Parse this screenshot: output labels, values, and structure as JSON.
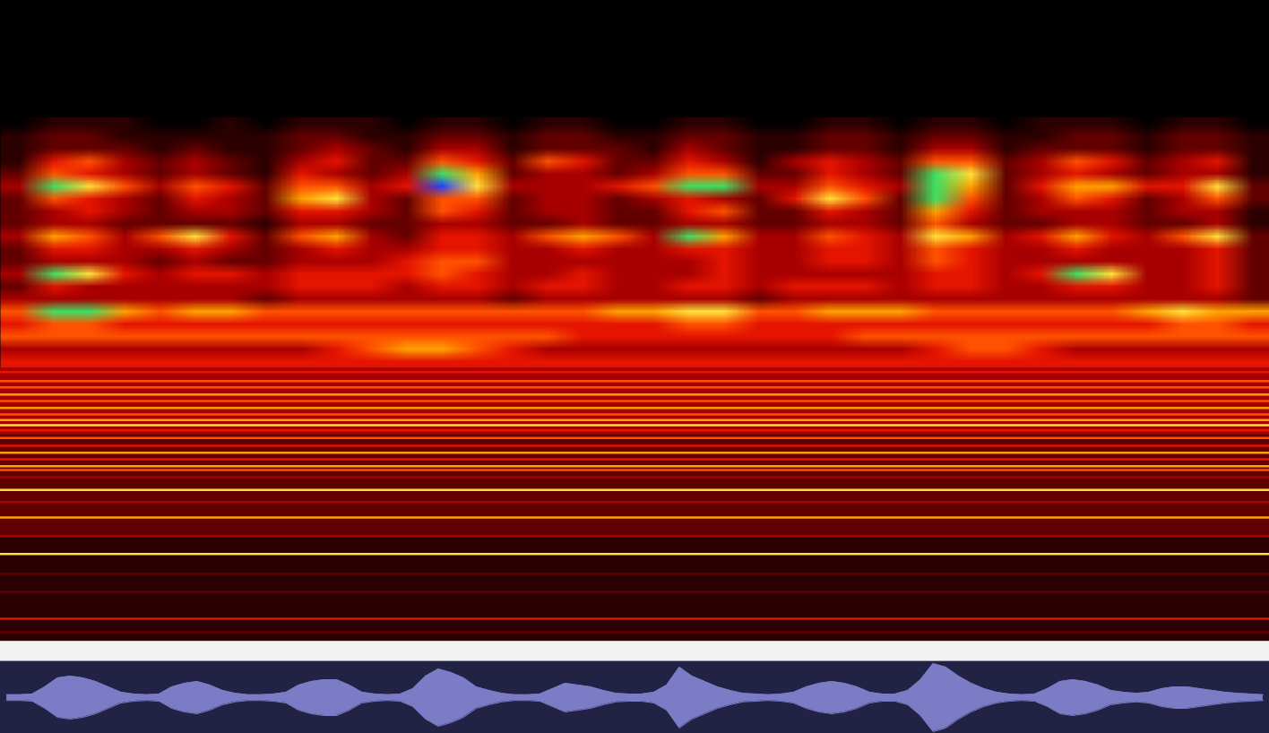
{
  "chart_data": [
    {
      "type": "spectrogram",
      "xlim": [
        0,
        100
      ],
      "ylim": [
        0,
        100
      ],
      "tick_labels": false,
      "intensity_range": [
        0,
        9
      ],
      "cells": {
        "x_range": [
          0,
          100
        ],
        "y_range": [
          81.8,
          42.7
        ],
        "values": [
          [
            0,
            1,
            1,
            1,
            0,
            0,
            1,
            0,
            1,
            1,
            1,
            0,
            1,
            1,
            0,
            1,
            1,
            0,
            0,
            1,
            1,
            0,
            0,
            1,
            1,
            0,
            1,
            1,
            0,
            1,
            1,
            1,
            0,
            1,
            1,
            0
          ],
          [
            1,
            2,
            2,
            1,
            1,
            1,
            1,
            1,
            2,
            2,
            1,
            1,
            2,
            2,
            1,
            2,
            2,
            1,
            1,
            2,
            2,
            1,
            1,
            2,
            2,
            1,
            2,
            2,
            1,
            1,
            2,
            2,
            1,
            2,
            2,
            1
          ],
          [
            1,
            2,
            2,
            2,
            1,
            2,
            1,
            1,
            2,
            3,
            2,
            1,
            3,
            3,
            1,
            2,
            2,
            2,
            1,
            3,
            2,
            1,
            1,
            2,
            2,
            1,
            3,
            3,
            1,
            2,
            2,
            2,
            1,
            2,
            2,
            1
          ],
          [
            1,
            4,
            5,
            3,
            2,
            3,
            2,
            1,
            3,
            4,
            2,
            2,
            5,
            4,
            2,
            5,
            4,
            2,
            2,
            4,
            3,
            1,
            3,
            4,
            3,
            2,
            5,
            5,
            2,
            3,
            5,
            4,
            2,
            3,
            4,
            1
          ],
          [
            2,
            5,
            4,
            3,
            2,
            3,
            2,
            1,
            4,
            3,
            2,
            3,
            8,
            6,
            2,
            3,
            3,
            2,
            3,
            5,
            5,
            2,
            2,
            4,
            3,
            2,
            8,
            7,
            2,
            3,
            4,
            3,
            2,
            3,
            3,
            1
          ],
          [
            3,
            8,
            7,
            5,
            3,
            5,
            4,
            2,
            5,
            5,
            3,
            4,
            9,
            7,
            3,
            3,
            3,
            4,
            5,
            8,
            8,
            3,
            3,
            5,
            4,
            3,
            8,
            6,
            2,
            4,
            6,
            6,
            4,
            4,
            7,
            2
          ],
          [
            2,
            5,
            4,
            3,
            2,
            4,
            3,
            2,
            6,
            7,
            3,
            2,
            5,
            5,
            2,
            3,
            3,
            2,
            3,
            4,
            3,
            2,
            4,
            7,
            5,
            2,
            8,
            5,
            2,
            3,
            5,
            4,
            2,
            3,
            5,
            2
          ],
          [
            2,
            3,
            4,
            3,
            2,
            3,
            3,
            2,
            4,
            4,
            3,
            2,
            5,
            4,
            2,
            3,
            3,
            2,
            2,
            4,
            5,
            2,
            2,
            4,
            3,
            2,
            6,
            4,
            2,
            3,
            3,
            3,
            2,
            3,
            3,
            1
          ],
          [
            2,
            3,
            3,
            2,
            2,
            2,
            2,
            1,
            3,
            3,
            2,
            2,
            3,
            3,
            2,
            2,
            3,
            2,
            2,
            3,
            3,
            2,
            2,
            3,
            3,
            2,
            5,
            3,
            2,
            2,
            3,
            3,
            2,
            2,
            3,
            1
          ],
          [
            3,
            6,
            5,
            3,
            5,
            7,
            4,
            2,
            5,
            6,
            3,
            2,
            4,
            4,
            3,
            5,
            6,
            5,
            3,
            8,
            6,
            3,
            3,
            5,
            4,
            3,
            7,
            6,
            3,
            4,
            6,
            4,
            3,
            5,
            7,
            2
          ],
          [
            2,
            4,
            4,
            3,
            3,
            4,
            3,
            2,
            3,
            4,
            3,
            3,
            4,
            4,
            3,
            3,
            4,
            3,
            3,
            4,
            4,
            3,
            3,
            4,
            4,
            3,
            5,
            4,
            3,
            3,
            4,
            3,
            3,
            3,
            4,
            2
          ],
          [
            2,
            3,
            3,
            3,
            2,
            3,
            2,
            2,
            3,
            3,
            3,
            4,
            5,
            5,
            3,
            3,
            3,
            3,
            3,
            3,
            4,
            3,
            3,
            4,
            4,
            3,
            5,
            4,
            3,
            3,
            3,
            3,
            3,
            3,
            4,
            2
          ],
          [
            3,
            8,
            7,
            4,
            3,
            4,
            4,
            3,
            4,
            4,
            4,
            4,
            5,
            4,
            3,
            3,
            4,
            3,
            3,
            3,
            4,
            3,
            3,
            3,
            3,
            3,
            4,
            4,
            3,
            4,
            8,
            7,
            3,
            3,
            4,
            2
          ],
          [
            2,
            4,
            3,
            3,
            3,
            3,
            3,
            3,
            4,
            4,
            4,
            3,
            4,
            4,
            3,
            4,
            4,
            3,
            3,
            4,
            4,
            3,
            4,
            4,
            4,
            3,
            4,
            4,
            3,
            3,
            4,
            4,
            3,
            3,
            4,
            2
          ],
          [
            3,
            3,
            3,
            3,
            3,
            3,
            3,
            2,
            3,
            3,
            3,
            3,
            3,
            3,
            2,
            3,
            3,
            3,
            3,
            3,
            3,
            2,
            3,
            3,
            3,
            3,
            3,
            3,
            3,
            3,
            3,
            3,
            3,
            3,
            3,
            2
          ],
          [
            5,
            8,
            8,
            6,
            5,
            6,
            6,
            5,
            5,
            5,
            5,
            5,
            5,
            5,
            5,
            5,
            5,
            6,
            6,
            7,
            7,
            5,
            5,
            6,
            6,
            6,
            5,
            5,
            5,
            5,
            5,
            5,
            6,
            7,
            6,
            6
          ],
          [
            4,
            5,
            5,
            4,
            4,
            4,
            4,
            4,
            4,
            4,
            4,
            4,
            4,
            4,
            4,
            4,
            4,
            4,
            4,
            5,
            5,
            4,
            4,
            4,
            4,
            4,
            4,
            4,
            4,
            4,
            4,
            4,
            4,
            5,
            5,
            4
          ],
          [
            5,
            5,
            5,
            5,
            5,
            5,
            5,
            5,
            5,
            5,
            5,
            5,
            5,
            5,
            5,
            5,
            4,
            4,
            4,
            4,
            4,
            4,
            4,
            4,
            5,
            5,
            5,
            5,
            5,
            5,
            5,
            5,
            5,
            5,
            5,
            5
          ],
          [
            3,
            3,
            3,
            3,
            3,
            3,
            3,
            3,
            3,
            4,
            5,
            6,
            6,
            5,
            4,
            3,
            3,
            3,
            3,
            3,
            3,
            3,
            3,
            3,
            3,
            3,
            4,
            5,
            5,
            4,
            3,
            3,
            3,
            3,
            3,
            3
          ],
          [
            4,
            4,
            4,
            4,
            4,
            4,
            4,
            4,
            4,
            4,
            4,
            4,
            4,
            4,
            4,
            4,
            4,
            4,
            4,
            4,
            4,
            4,
            4,
            4,
            4,
            4,
            4,
            4,
            4,
            4,
            4,
            4,
            4,
            4,
            4,
            4
          ]
        ]
      },
      "background_bands": [
        {
          "y1": 0,
          "y2": 16.1,
          "intensity": 1
        },
        {
          "y1": 16.1,
          "y2": 32.2,
          "intensity": 2
        },
        {
          "y1": 32.2,
          "y2": 42.7,
          "intensity": 3
        }
      ],
      "tones": [
        {
          "frequency": 42.0,
          "intensity": 4
        },
        {
          "frequency": 40.6,
          "intensity": 5
        },
        {
          "frequency": 39.6,
          "intensity": 5
        },
        {
          "frequency": 38.5,
          "intensity": 6
        },
        {
          "frequency": 37.5,
          "intensity": 5
        },
        {
          "frequency": 36.4,
          "intensity": 6
        },
        {
          "frequency": 35.4,
          "intensity": 5
        },
        {
          "frequency": 34.5,
          "intensity": 6
        },
        {
          "frequency": 33.7,
          "intensity": 7
        },
        {
          "frequency": 32.9,
          "intensity": 4
        },
        {
          "frequency": 31.7,
          "intensity": 5
        },
        {
          "frequency": 30.5,
          "intensity": 4
        },
        {
          "frequency": 29.4,
          "intensity": 6
        },
        {
          "frequency": 28.4,
          "intensity": 4
        },
        {
          "frequency": 27.3,
          "intensity": 6
        },
        {
          "frequency": 26.7,
          "intensity": 5
        },
        {
          "frequency": 25.6,
          "intensity": 3
        },
        {
          "frequency": 23.6,
          "intensity": 7
        },
        {
          "frequency": 21.7,
          "intensity": 3
        },
        {
          "frequency": 19.3,
          "intensity": 6
        },
        {
          "frequency": 17.5,
          "intensity": 2
        },
        {
          "frequency": 16.4,
          "intensity": 3
        },
        {
          "frequency": 13.6,
          "intensity": 7
        },
        {
          "frequency": 10.5,
          "intensity": 2
        },
        {
          "frequency": 7.7,
          "intensity": 2
        },
        {
          "frequency": 3.5,
          "intensity": 4
        },
        {
          "frequency": 1.4,
          "intensity": 2
        }
      ]
    },
    {
      "type": "waveform",
      "xlim": [
        0,
        100
      ],
      "ylim": [
        -1,
        1
      ],
      "tick_labels": false,
      "color": "#7b7bc6",
      "x": [
        0.5,
        1.5,
        2.5,
        3.5,
        4.5,
        5.5,
        6.5,
        7.5,
        8.5,
        9.5,
        10.5,
        11.5,
        12.5,
        13.5,
        14.5,
        15.5,
        16.5,
        17.5,
        18.5,
        19.5,
        20.5,
        21.5,
        22.5,
        23.5,
        24.5,
        25.5,
        26.5,
        27.5,
        28.5,
        29.5,
        30.5,
        31.5,
        32.5,
        33.5,
        34.5,
        35.5,
        36.5,
        37.5,
        38.5,
        39.5,
        40.5,
        41.5,
        42.5,
        43.5,
        44.5,
        45.5,
        46.5,
        47.5,
        48.5,
        49.5,
        50.5,
        51.5,
        52.5,
        53.5,
        54.5,
        55.5,
        56.5,
        57.5,
        58.5,
        59.5,
        60.5,
        61.5,
        62.5,
        63.5,
        64.5,
        65.5,
        66.5,
        67.5,
        68.5,
        69.5,
        70.5,
        71.5,
        72.5,
        73.5,
        74.5,
        75.5,
        76.5,
        77.5,
        78.5,
        79.5,
        80.5,
        81.5,
        82.5,
        83.5,
        84.5,
        85.5,
        86.5,
        87.5,
        88.5,
        89.5,
        90.5,
        91.5,
        92.5,
        93.5,
        94.5,
        95.5,
        96.5,
        97.5,
        98.5,
        99.5
      ],
      "values": [
        0.08,
        0.08,
        0.1,
        0.3,
        0.55,
        0.6,
        0.55,
        0.45,
        0.3,
        0.15,
        0.1,
        0.08,
        0.1,
        0.3,
        0.4,
        0.45,
        0.35,
        0.2,
        0.12,
        0.08,
        0.08,
        0.1,
        0.15,
        0.35,
        0.45,
        0.5,
        0.5,
        0.35,
        0.15,
        0.1,
        0.08,
        0.1,
        0.25,
        0.6,
        0.8,
        0.7,
        0.55,
        0.3,
        0.2,
        0.12,
        0.08,
        0.08,
        0.1,
        0.25,
        0.4,
        0.35,
        0.3,
        0.2,
        0.12,
        0.1,
        0.1,
        0.15,
        0.35,
        0.85,
        0.6,
        0.45,
        0.3,
        0.2,
        0.12,
        0.1,
        0.08,
        0.1,
        0.15,
        0.3,
        0.4,
        0.45,
        0.4,
        0.3,
        0.15,
        0.1,
        0.1,
        0.2,
        0.5,
        0.95,
        0.85,
        0.6,
        0.4,
        0.25,
        0.15,
        0.1,
        0.08,
        0.1,
        0.25,
        0.45,
        0.5,
        0.45,
        0.35,
        0.2,
        0.15,
        0.12,
        0.15,
        0.25,
        0.3,
        0.3,
        0.25,
        0.2,
        0.15,
        0.12,
        0.1,
        0.08
      ]
    }
  ]
}
